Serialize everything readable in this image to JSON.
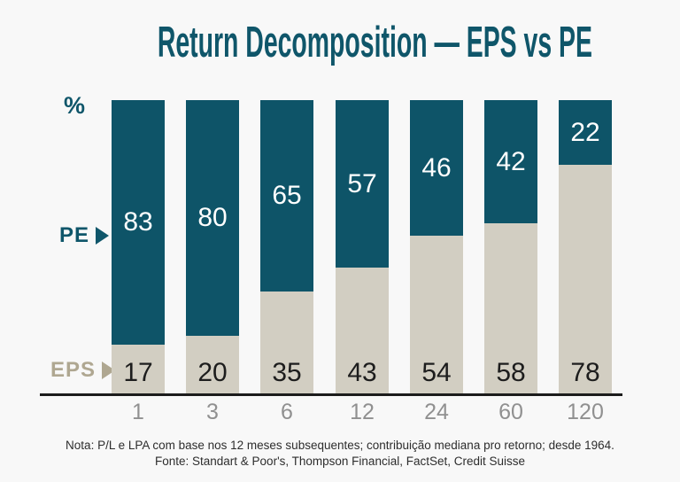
{
  "title": "Return Decomposition — EPS vs PE",
  "y_axis_unit": "%",
  "series_labels": {
    "pe": "PE",
    "eps": "EPS"
  },
  "footer": {
    "note": "Nota: P/L e LPA com base nos 12 meses subsequentes; contribuição mediana pro retorno; desde 1964.",
    "source": "Fonte: Standart & Poor's, Thompson Financial, FactSet, Credit Suisse"
  },
  "colors": {
    "pe": "#0E5468",
    "eps": "#D2CEC2",
    "title": "#0F566A",
    "eps_label": "#AFA791",
    "axis": "#1C1C1C",
    "tick": "#909090",
    "background": "#F8F8F8",
    "pe_value_text": "#FFFFFF",
    "eps_value_text": "#1D1D1D",
    "footer_text": "#2D2D2D"
  },
  "chart_data": {
    "type": "bar",
    "stacked": true,
    "orientation": "vertical",
    "categories": [
      "1",
      "3",
      "6",
      "12",
      "24",
      "60",
      "120"
    ],
    "series": [
      {
        "name": "PE",
        "color": "#0E5468",
        "values": [
          83,
          80,
          65,
          57,
          46,
          42,
          22
        ]
      },
      {
        "name": "EPS",
        "color": "#D2CEC2",
        "values": [
          17,
          20,
          35,
          43,
          54,
          58,
          78
        ]
      }
    ],
    "title": "Return Decomposition — EPS vs PE",
    "xlabel": "",
    "ylabel": "%",
    "ylim": [
      0,
      100
    ],
    "grid": false,
    "value_labels": "inside-segments",
    "legend_position": "left-side-arrows"
  }
}
